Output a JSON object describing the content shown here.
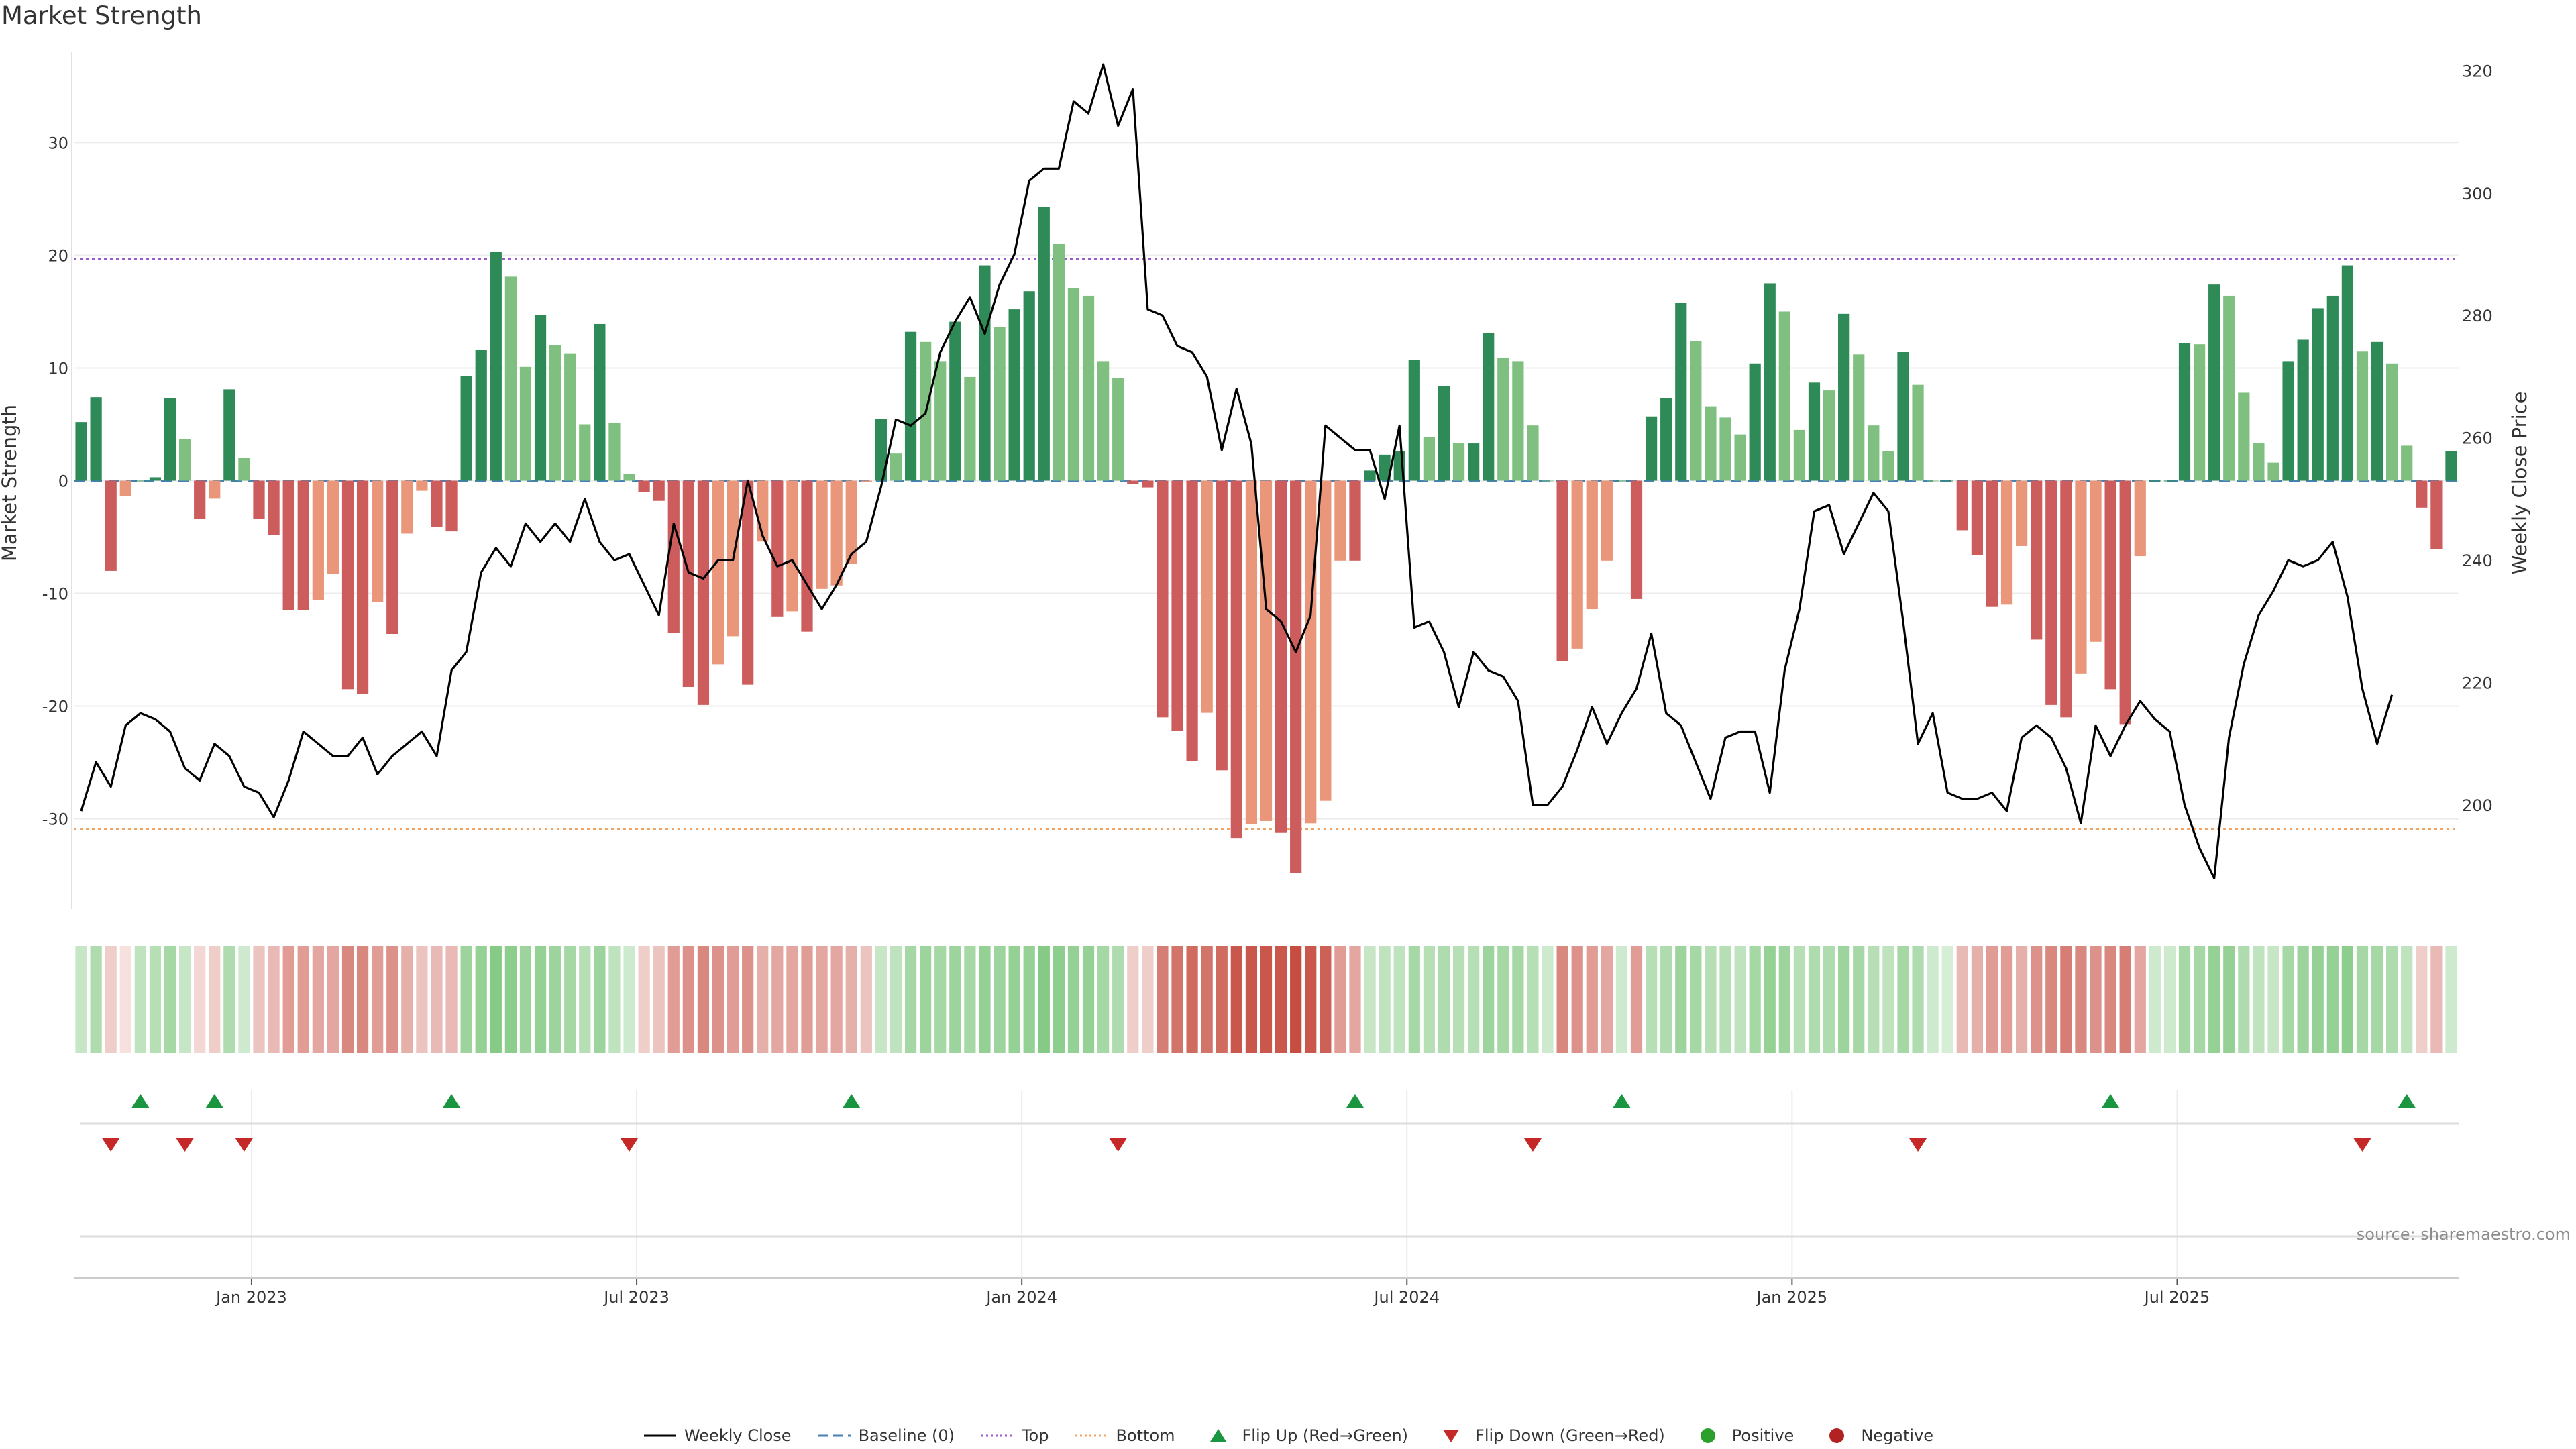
{
  "chart_data": {
    "type": "bar",
    "title": "Market Strength",
    "ylabel": "Market Strength",
    "y2label": "Weekly Close Price",
    "ylim": [
      -38,
      38
    ],
    "y2lim": [
      183,
      323
    ],
    "yticks": [
      30,
      20,
      10,
      0,
      -10,
      -20,
      -30
    ],
    "y2ticks": [
      320,
      300,
      280,
      260,
      240,
      220,
      200
    ],
    "xtick_labels": [
      {
        "week": 11.5,
        "label": "Jan 2023"
      },
      {
        "week": 37.5,
        "label": "Jul 2023"
      },
      {
        "week": 63.5,
        "label": "Jan 2024"
      },
      {
        "week": 89.5,
        "label": "Jul 2024"
      },
      {
        "week": 115.5,
        "label": "Jan 2025"
      },
      {
        "week": 141.5,
        "label": "Jul 2025"
      }
    ],
    "top_level": 19.7,
    "bottom_level": -30.9,
    "strength": [
      5.2,
      7.4,
      -8,
      -1.4,
      0,
      0.3,
      7.3,
      3.7,
      -3.4,
      -1.6,
      8.1,
      2,
      -3.4,
      -4.8,
      -11.5,
      -11.5,
      -10.6,
      -8.3,
      -18.5,
      -18.9,
      -10.8,
      -13.6,
      -4.7,
      -0.9,
      -4.1,
      -4.5,
      9.3,
      11.6,
      20.3,
      18.1,
      10.1,
      14.7,
      12,
      11.3,
      5,
      13.9,
      5.1,
      0.6,
      -1,
      -1.8,
      -13.5,
      -18.3,
      -19.9,
      -16.3,
      -13.8,
      -18.1,
      -5.4,
      -12.1,
      -11.6,
      -13.4,
      -9.6,
      -9.3,
      -7.4,
      -0.1,
      5.5,
      2.4,
      13.2,
      12.3,
      10.6,
      14.1,
      9.2,
      19.1,
      13.6,
      15.2,
      16.8,
      24.3,
      21,
      17.1,
      16.4,
      10.6,
      9.1,
      -0.3,
      -0.6,
      -21,
      -22.2,
      -24.9,
      -20.6,
      -25.7,
      -31.7,
      -30.5,
      -30.2,
      -31.2,
      -34.8,
      -30.4,
      -28.4,
      -7.1,
      -7.1,
      0.9,
      2.3,
      2.6,
      10.7,
      3.9,
      8.4,
      3.3,
      3.3,
      13.1,
      10.9,
      10.6,
      4.9,
      0,
      -16,
      -14.9,
      -11.4,
      -7.1,
      0,
      -10.5,
      5.7,
      7.3,
      15.8,
      12.4,
      6.6,
      5.6,
      4.1,
      10.4,
      17.5,
      15,
      4.5,
      8.7,
      8,
      14.8,
      11.2,
      4.9,
      2.6,
      11.4,
      8.5,
      0,
      0,
      -4.4,
      -6.6,
      -11.2,
      -11,
      -5.8,
      -14.1,
      -19.9,
      -21,
      -17.1,
      -14.3,
      -18.5,
      -21.6,
      -6.7,
      0,
      0,
      12.2,
      12.1,
      17.4,
      16.4,
      7.8,
      3.3,
      1.6,
      10.6,
      12.5,
      15.3,
      16.4,
      19.1,
      11.5,
      12.3,
      10.4,
      3.1,
      -2.4,
      -6.1,
      2.6
    ],
    "close": [
      199,
      207,
      203,
      213,
      215,
      214,
      212,
      206,
      204,
      210,
      208,
      203,
      202,
      198,
      204,
      212,
      210,
      208,
      208,
      211,
      205,
      208,
      210,
      212,
      208,
      222,
      225,
      238,
      242,
      239,
      246,
      243,
      246,
      243,
      250,
      243,
      240,
      241,
      236,
      231,
      246,
      238,
      237,
      240,
      240,
      253,
      244,
      239,
      240,
      236,
      232,
      236,
      241,
      243,
      252,
      263,
      262,
      264,
      274,
      279,
      283,
      277,
      285,
      290,
      302,
      304,
      304,
      315,
      313,
      321,
      311,
      317,
      281,
      280,
      275,
      274,
      270,
      258,
      268,
      259,
      232,
      230,
      225,
      231,
      262,
      260,
      258,
      258,
      250,
      262,
      229,
      230,
      225,
      216,
      225,
      222,
      221,
      217,
      200,
      200,
      203,
      209,
      216,
      210,
      215,
      219,
      228,
      215,
      213,
      207,
      201,
      211,
      212,
      212,
      202,
      222,
      232,
      248,
      249,
      241,
      246,
      251,
      248,
      230,
      210,
      215,
      202,
      201,
      201,
      202,
      199,
      211,
      213,
      211,
      206,
      197,
      213,
      208,
      213,
      217,
      214,
      212,
      200,
      193,
      188,
      211,
      223,
      231,
      235,
      240,
      239,
      240,
      243,
      234,
      219,
      210,
      218
    ],
    "heat_levels": [
      0.35,
      0.5,
      0.25,
      0.15,
      0.4,
      0.45,
      0.55,
      0.35,
      0.2,
      0.25,
      0.5,
      0.3,
      0.3,
      0.35,
      0.5,
      0.5,
      0.45,
      0.45,
      0.6,
      0.6,
      0.5,
      0.55,
      0.4,
      0.3,
      0.35,
      0.35,
      0.6,
      0.65,
      0.75,
      0.7,
      0.6,
      0.65,
      0.6,
      0.55,
      0.45,
      0.6,
      0.4,
      0.3,
      0.25,
      0.3,
      0.5,
      0.55,
      0.6,
      0.55,
      0.5,
      0.55,
      0.4,
      0.45,
      0.45,
      0.5,
      0.45,
      0.45,
      0.4,
      0.3,
      0.35,
      0.4,
      0.55,
      0.6,
      0.55,
      0.6,
      0.55,
      0.65,
      0.6,
      0.65,
      0.65,
      0.75,
      0.7,
      0.65,
      0.65,
      0.55,
      0.5,
      0.25,
      0.25,
      0.65,
      0.7,
      0.75,
      0.7,
      0.75,
      0.85,
      0.85,
      0.85,
      0.85,
      0.9,
      0.85,
      0.8,
      0.5,
      0.45,
      0.35,
      0.4,
      0.4,
      0.55,
      0.45,
      0.5,
      0.45,
      0.45,
      0.6,
      0.55,
      0.55,
      0.45,
      0.3,
      0.6,
      0.55,
      0.5,
      0.45,
      0.3,
      0.5,
      0.45,
      0.5,
      0.6,
      0.55,
      0.45,
      0.45,
      0.4,
      0.55,
      0.65,
      0.6,
      0.45,
      0.5,
      0.5,
      0.6,
      0.55,
      0.45,
      0.4,
      0.55,
      0.5,
      0.3,
      0.25,
      0.35,
      0.4,
      0.5,
      0.5,
      0.4,
      0.55,
      0.6,
      0.65,
      0.6,
      0.55,
      0.6,
      0.65,
      0.45,
      0.3,
      0.3,
      0.55,
      0.55,
      0.65,
      0.65,
      0.5,
      0.4,
      0.35,
      0.55,
      0.6,
      0.65,
      0.65,
      0.7,
      0.55,
      0.55,
      0.5,
      0.4,
      0.25,
      0.35,
      0.3
    ],
    "flip_up_weeks": [
      4,
      9,
      25,
      52,
      86,
      104,
      137,
      157
    ],
    "flip_down_weeks": [
      2,
      7,
      11,
      37,
      70,
      98,
      124,
      154
    ],
    "colors": {
      "strong_positive": "#2e8b57",
      "weak_positive": "#7fbf7f",
      "strong_negative": "#cd5c5c",
      "weak_negative": "#e9967a",
      "price_line": "#000000",
      "baseline": "#4682b4",
      "top": "#9b59d0",
      "bottom": "#f4a460",
      "flip_up": "#1a9641",
      "flip_down": "#c62828"
    },
    "legend": [
      {
        "label": "Weekly Close",
        "marker": "line",
        "color": "#000000"
      },
      {
        "label": "Baseline (0)",
        "marker": "dash",
        "color": "#4682b4"
      },
      {
        "label": "Top",
        "marker": "dot",
        "color": "#9b59d0"
      },
      {
        "label": "Bottom",
        "marker": "dot",
        "color": "#f4a460"
      },
      {
        "label": "Flip Up (Red→Green)",
        "marker": "triangle-up",
        "color": "#1a9641"
      },
      {
        "label": "Flip Down (Green→Red)",
        "marker": "triangle-down",
        "color": "#c62828"
      },
      {
        "label": "Positive",
        "marker": "circle",
        "color": "#2ca02c"
      },
      {
        "label": "Negative",
        "marker": "circle",
        "color": "#b22222"
      }
    ]
  },
  "source": "source: sharemaestro.com"
}
